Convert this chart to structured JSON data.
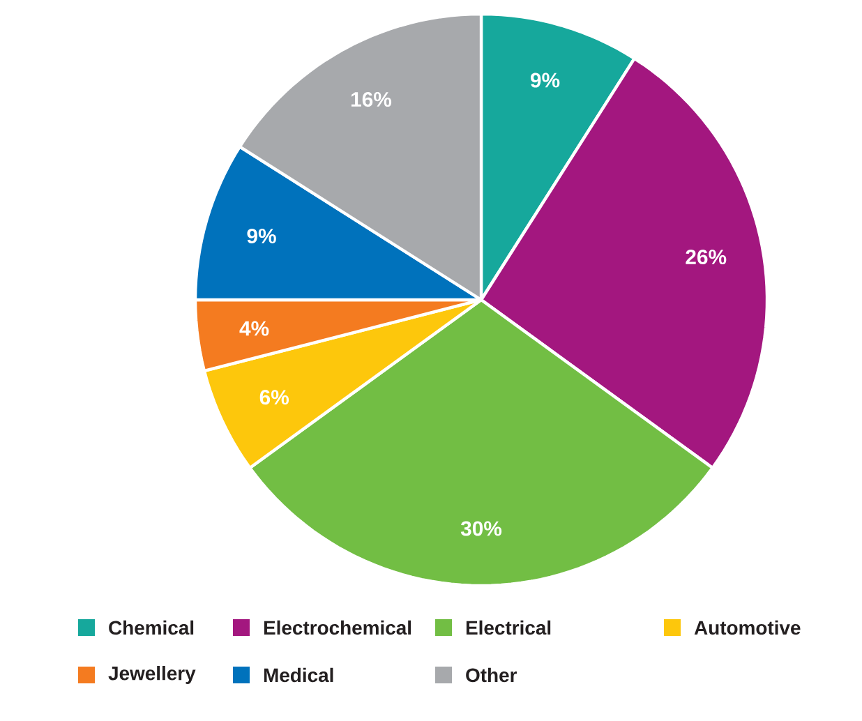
{
  "chart_data": {
    "type": "pie",
    "categories": [
      "Chemical",
      "Electrochemical",
      "Electrical",
      "Automotive",
      "Jewellery",
      "Medical",
      "Other"
    ],
    "values": [
      9,
      26,
      30,
      6,
      4,
      9,
      16
    ],
    "colors": [
      "#16a89c",
      "#a3177f",
      "#72be44",
      "#fdc70c",
      "#f47b20",
      "#0072bc",
      "#a7a9ac"
    ],
    "value_labels": [
      "9%",
      "26%",
      "30%",
      "6%",
      "4%",
      "9%",
      "16%"
    ],
    "legend": "bottom"
  }
}
